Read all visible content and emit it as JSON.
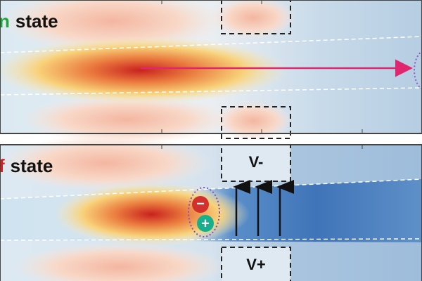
{
  "panels": [
    {
      "state_letter": "n",
      "state_word": "state"
    },
    {
      "state_letter": "f",
      "state_word": "state",
      "gate_top": "V-",
      "gate_bottom": "V+",
      "charge_top": "−",
      "charge_bottom": "+"
    }
  ]
}
